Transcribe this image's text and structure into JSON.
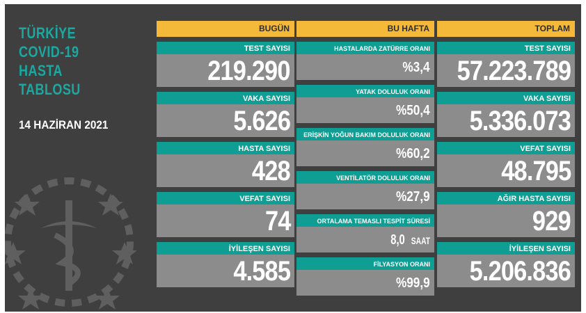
{
  "title": {
    "lines": [
      "TÜRKİYE",
      "COVID-19",
      "HASTA",
      "TABLOSU"
    ]
  },
  "date": "14 HAZİRAN 2021",
  "colors": {
    "background": "#3f3f3f",
    "header": "#f5b93a",
    "label": "#0f9e93",
    "value_box": "#8c8c8c",
    "title": "#1aa8a0"
  },
  "today": {
    "header": "BUGÜN",
    "items": [
      {
        "label": "TEST SAYISI",
        "value": "219.290"
      },
      {
        "label": "VAKA SAYISI",
        "value": "5.626"
      },
      {
        "label": "HASTA SAYISI",
        "value": "428"
      },
      {
        "label": "VEFAT SAYISI",
        "value": "74"
      },
      {
        "label": "İYİLEŞEN SAYISI",
        "value": "4.585"
      }
    ]
  },
  "week": {
    "header": "BU HAFTA",
    "items": [
      {
        "label": "HASTALARDA ZATÜRRE ORANI",
        "value": "%3,4"
      },
      {
        "label": "YATAK DOLULUK ORANI",
        "value": "%50,4"
      },
      {
        "label": "ERİŞKİN YOĞUN BAKIM DOLULUK ORANI",
        "value": "%60,2"
      },
      {
        "label": "VENTİLATÖR DOLULUK ORANI",
        "value": "%27,9"
      },
      {
        "label": "ORTALAMA TEMASLI TESPİT SÜRESİ",
        "value": "8,0",
        "unit": "SAAT"
      },
      {
        "label": "FİLYASYON ORANI",
        "value": "%99,9"
      }
    ]
  },
  "total": {
    "header": "TOPLAM",
    "items": [
      {
        "label": "TEST SAYISI",
        "value": "57.223.789"
      },
      {
        "label": "VAKA SAYISI",
        "value": "5.336.073"
      },
      {
        "label": "VEFAT SAYISI",
        "value": "48.795"
      },
      {
        "label": "AĞIR HASTA SAYISI",
        "value": "929"
      },
      {
        "label": "İYİLEŞEN SAYISI",
        "value": "5.206.836"
      }
    ]
  }
}
